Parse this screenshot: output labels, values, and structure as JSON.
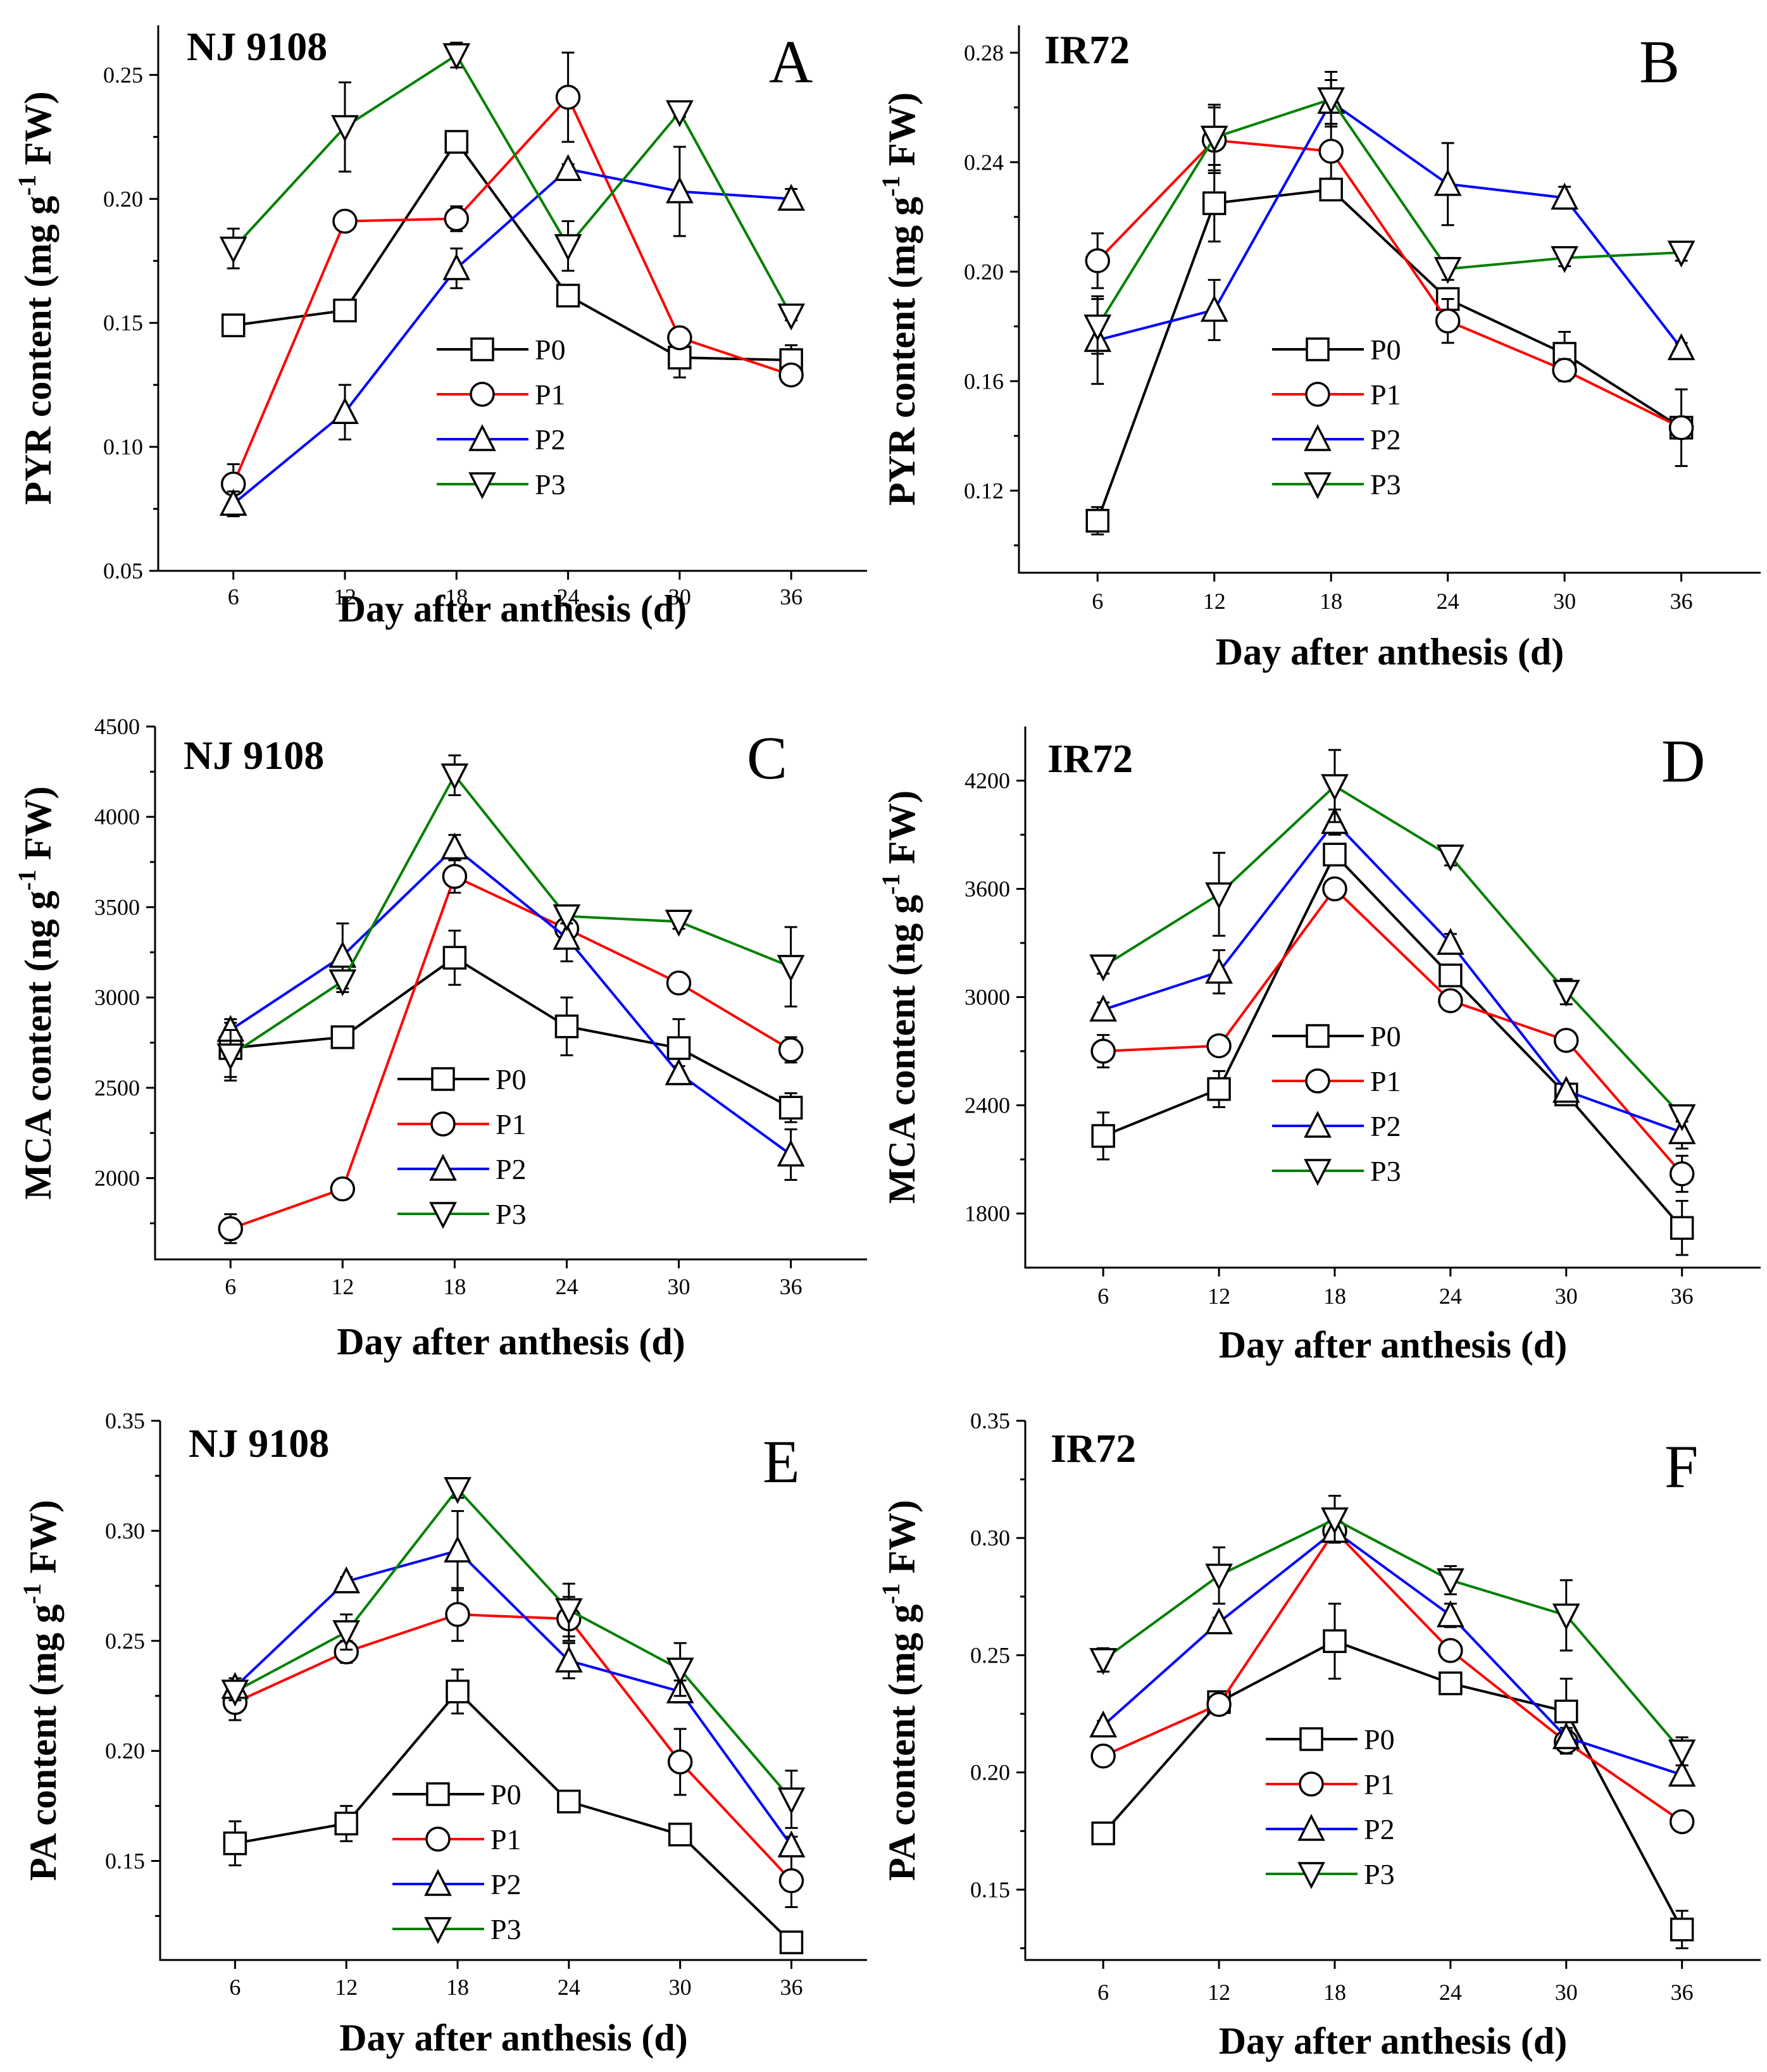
{
  "legend": {
    "series_names": [
      "P0",
      "P1",
      "P2",
      "P3"
    ],
    "series_colors": [
      "#000000",
      "#ff0000",
      "#0000ff",
      "#008000"
    ],
    "series_markers": [
      "square",
      "circle",
      "triangle-up",
      "triangle-down"
    ]
  },
  "chart_data": [
    {
      "panel": "A",
      "cultivar": "NJ 9108",
      "type": "line",
      "xlabel": "Day after anthesis (d)",
      "ylabel": "PYR content (mg g",
      "ylabel_sup": "-1",
      "ylabel_end": " FW)",
      "x": [
        6,
        12,
        18,
        24,
        30,
        36
      ],
      "ylim": [
        0.05,
        0.27
      ],
      "yticks": [
        0.05,
        0.1,
        0.15,
        0.2,
        0.25
      ],
      "ytick_labels": [
        "0.05",
        "0.10",
        "0.15",
        "0.20",
        "0.25"
      ],
      "series": [
        {
          "name": "P0",
          "values": [
            0.149,
            0.155,
            0.223,
            0.161,
            0.136,
            0.135
          ],
          "err": [
            0.004,
            0.002,
            0.002,
            0.002,
            0.008,
            0.006
          ]
        },
        {
          "name": "P1",
          "values": [
            0.085,
            0.191,
            0.192,
            0.241,
            0.144,
            0.129
          ],
          "err": [
            0.008,
            0.002,
            0.005,
            0.018,
            0.003,
            0.002
          ]
        },
        {
          "name": "P2",
          "values": [
            0.077,
            0.114,
            0.172,
            0.212,
            0.203,
            0.2
          ],
          "err": [
            0.005,
            0.011,
            0.008,
            0.002,
            0.018,
            0.004
          ]
        },
        {
          "name": "P3",
          "values": [
            0.18,
            0.229,
            0.258,
            0.181,
            0.235,
            0.153
          ],
          "err": [
            0.008,
            0.018,
            0.005,
            0.01,
            0.002,
            0.002
          ]
        }
      ]
    },
    {
      "panel": "B",
      "cultivar": "IR72",
      "type": "line",
      "xlabel": "Day after anthesis (d)",
      "ylabel": "PYR content (mg g",
      "ylabel_sup": "-1",
      "ylabel_end": " FW)",
      "x": [
        6,
        12,
        18,
        24,
        30,
        36
      ],
      "ylim": [
        0.09,
        0.29
      ],
      "yticks": [
        0.12,
        0.16,
        0.2,
        0.24,
        0.28
      ],
      "ytick_labels": [
        "0.12",
        "0.16",
        "0.20",
        "0.24",
        "0.28"
      ],
      "series": [
        {
          "name": "P0",
          "values": [
            0.109,
            0.225,
            0.23,
            0.19,
            0.17,
            0.143
          ],
          "err": [
            0.005,
            0.014,
            0.003,
            0.004,
            0.008,
            0.014
          ]
        },
        {
          "name": "P1",
          "values": [
            0.204,
            0.248,
            0.244,
            0.182,
            0.164,
            0.143
          ],
          "err": [
            0.01,
            0.012,
            0.01,
            0.008,
            0.004,
            0.004
          ]
        },
        {
          "name": "P2",
          "values": [
            0.175,
            0.186,
            0.262,
            0.232,
            0.227,
            0.172
          ],
          "err": [
            0.016,
            0.011,
            0.008,
            0.015,
            0.004,
            0.002
          ]
        },
        {
          "name": "P3",
          "values": [
            0.18,
            0.249,
            0.263,
            0.201,
            0.205,
            0.207
          ],
          "err": [
            0.01,
            0.012,
            0.01,
            0.004,
            0.003,
            0.003
          ]
        }
      ]
    },
    {
      "panel": "C",
      "cultivar": "NJ 9108",
      "type": "line",
      "xlabel": "Day after anthesis (d)",
      "ylabel": "MCA content (ng g",
      "ylabel_sup": "-1",
      "ylabel_end": " FW)",
      "x": [
        6,
        12,
        18,
        24,
        30,
        36
      ],
      "ylim": [
        1550,
        4500
      ],
      "yticks": [
        2000,
        2500,
        3000,
        3500,
        4000,
        4500
      ],
      "ytick_labels": [
        "2000",
        "2500",
        "3000",
        "3500",
        "4000",
        "4500"
      ],
      "series": [
        {
          "name": "P0",
          "values": [
            2720,
            2780,
            3220,
            2840,
            2720,
            2390
          ],
          "err": [
            160,
            30,
            150,
            160,
            160,
            80
          ]
        },
        {
          "name": "P1",
          "values": [
            1720,
            1940,
            3670,
            3380,
            3080,
            2710
          ],
          "err": [
            80,
            30,
            90,
            40,
            40,
            70
          ]
        },
        {
          "name": "P2",
          "values": [
            2820,
            3230,
            3830,
            3330,
            2580,
            2130
          ],
          "err": [
            40,
            180,
            70,
            130,
            40,
            140
          ]
        },
        {
          "name": "P3",
          "values": [
            2680,
            3090,
            4230,
            3450,
            3420,
            3170
          ],
          "err": [
            140,
            60,
            110,
            40,
            40,
            220
          ]
        }
      ]
    },
    {
      "panel": "D",
      "cultivar": "IR72",
      "type": "line",
      "xlabel": "Day after anthesis (d)",
      "ylabel": "MCA content (ng g",
      "ylabel_sup": "-1",
      "ylabel_end": " FW)",
      "x": [
        6,
        12,
        18,
        24,
        30,
        36
      ],
      "ylim": [
        1500,
        4500
      ],
      "yticks": [
        1800,
        2400,
        3000,
        3600,
        4200
      ],
      "ytick_labels": [
        "1800",
        "2400",
        "3000",
        "3600",
        "4200"
      ],
      "series": [
        {
          "name": "P0",
          "values": [
            2230,
            2490,
            3790,
            3120,
            2460,
            1720
          ],
          "err": [
            130,
            100,
            50,
            60,
            50,
            150
          ]
        },
        {
          "name": "P1",
          "values": [
            2700,
            2730,
            3600,
            2980,
            2760,
            2020
          ],
          "err": [
            90,
            40,
            30,
            30,
            40,
            100
          ]
        },
        {
          "name": "P2",
          "values": [
            2930,
            3140,
            3970,
            3300,
            2480,
            2250
          ],
          "err": [
            40,
            120,
            70,
            50,
            40,
            90
          ]
        },
        {
          "name": "P3",
          "values": [
            3170,
            3570,
            4170,
            3780,
            3030,
            2340
          ],
          "err": [
            40,
            230,
            200,
            50,
            70,
            30
          ]
        }
      ]
    },
    {
      "panel": "E",
      "cultivar": "NJ 9108",
      "type": "line",
      "xlabel": "Day after anthesis (d)",
      "ylabel": "PA content (mg g",
      "ylabel_sup": "-1",
      "ylabel_end": " FW)",
      "x": [
        6,
        12,
        18,
        24,
        30,
        36
      ],
      "ylim": [
        0.105,
        0.35
      ],
      "yticks": [
        0.15,
        0.2,
        0.25,
        0.3,
        0.35
      ],
      "ytick_labels": [
        "0.15",
        "0.20",
        "0.25",
        "0.30",
        "0.35"
      ],
      "series": [
        {
          "name": "P0",
          "values": [
            0.158,
            0.167,
            0.227,
            0.177,
            0.162,
            0.113
          ],
          "err": [
            0.01,
            0.008,
            0.01,
            0.003,
            0.003,
            0.003
          ]
        },
        {
          "name": "P1",
          "values": [
            0.222,
            0.245,
            0.262,
            0.26,
            0.195,
            0.141
          ],
          "err": [
            0.008,
            0.005,
            0.012,
            0.01,
            0.015,
            0.012
          ]
        },
        {
          "name": "P2",
          "values": [
            0.229,
            0.277,
            0.291,
            0.241,
            0.227,
            0.157
          ],
          "err": [
            0.004,
            0.002,
            0.018,
            0.008,
            0.005,
            0.004
          ]
        },
        {
          "name": "P3",
          "values": [
            0.227,
            0.254,
            0.319,
            0.264,
            0.237,
            0.178
          ],
          "err": [
            0.004,
            0.008,
            0.004,
            0.012,
            0.012,
            0.013
          ]
        }
      ]
    },
    {
      "panel": "F",
      "cultivar": "IR72",
      "type": "line",
      "xlabel": "Day after anthesis (d)",
      "ylabel": "PA content (mg g",
      "ylabel_sup": "-1",
      "ylabel_end": " FW)",
      "x": [
        6,
        12,
        18,
        24,
        30,
        36
      ],
      "ylim": [
        0.12,
        0.35
      ],
      "yticks": [
        0.15,
        0.2,
        0.25,
        0.3,
        0.35
      ],
      "ytick_labels": [
        "0.15",
        "0.20",
        "0.25",
        "0.30",
        "0.35"
      ],
      "series": [
        {
          "name": "P0",
          "values": [
            0.174,
            0.23,
            0.256,
            0.238,
            0.226,
            0.133
          ],
          "err": [
            0.002,
            0.002,
            0.016,
            0.004,
            0.014,
            0.008
          ]
        },
        {
          "name": "P1",
          "values": [
            0.207,
            0.229,
            0.303,
            0.252,
            0.213,
            0.179
          ],
          "err": [
            0.002,
            0.002,
            0.004,
            0.004,
            0.005,
            0.002
          ]
        },
        {
          "name": "P2",
          "values": [
            0.22,
            0.264,
            0.303,
            0.267,
            0.215,
            0.199
          ],
          "err": [
            0.002,
            0.002,
            0.004,
            0.005,
            0.004,
            0.004
          ]
        },
        {
          "name": "P3",
          "values": [
            0.248,
            0.284,
            0.308,
            0.282,
            0.267,
            0.209
          ],
          "err": [
            0.005,
            0.012,
            0.01,
            0.006,
            0.015,
            0.006
          ]
        }
      ]
    }
  ]
}
